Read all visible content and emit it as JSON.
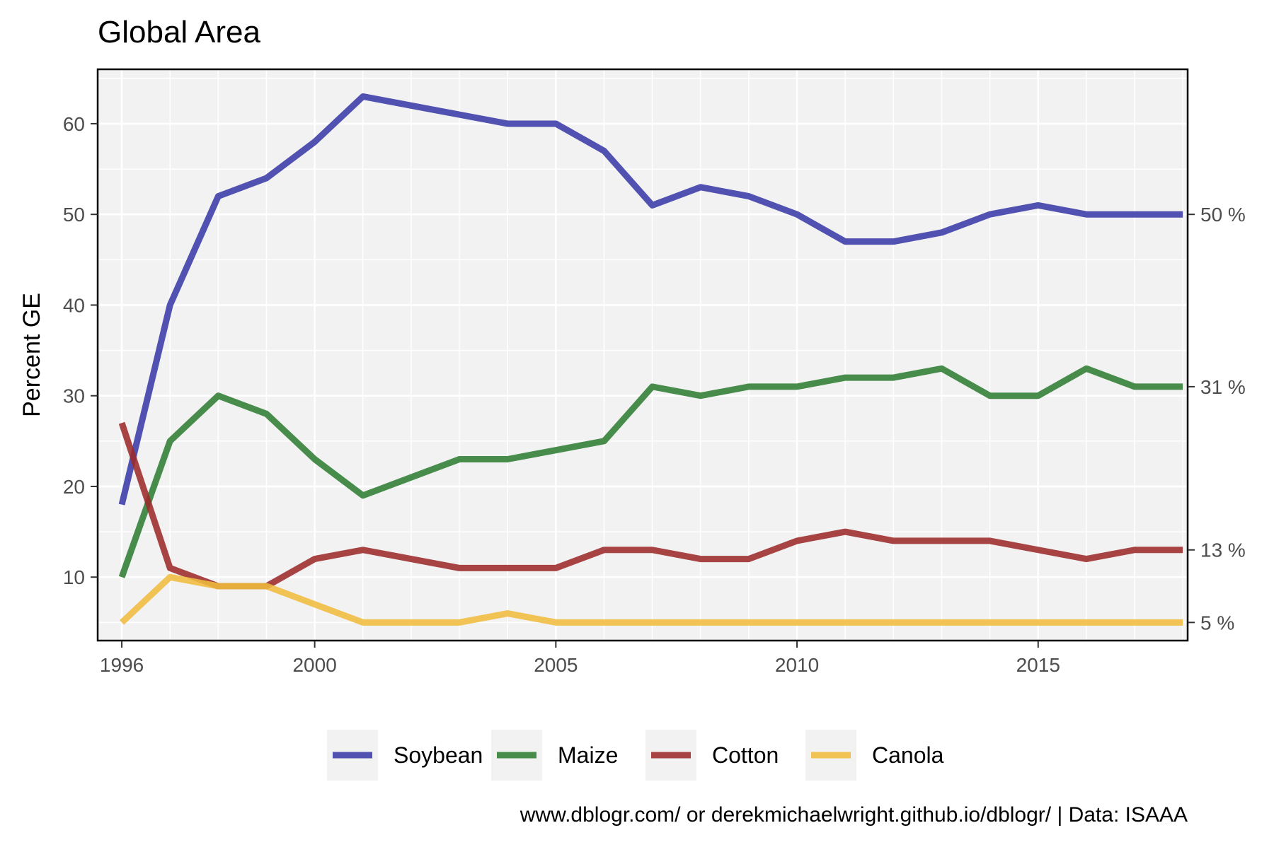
{
  "chart_data": {
    "type": "line",
    "title": "Global Area",
    "xlabel": "",
    "ylabel": "Percent GE",
    "caption": "www.dblogr.com/ or derekmichaelwright.github.io/dblogr/ | Data: ISAAA",
    "xlim": [
      1995.5,
      2018.1
    ],
    "ylim": [
      3,
      66
    ],
    "x_ticks": [
      1996,
      2000,
      2005,
      2010,
      2015
    ],
    "y_ticks": [
      10,
      20,
      30,
      40,
      50,
      60
    ],
    "grid": true,
    "legend_position": "bottom",
    "x": [
      1996,
      1997,
      1998,
      1999,
      2000,
      2001,
      2002,
      2003,
      2004,
      2005,
      2006,
      2007,
      2008,
      2009,
      2010,
      2011,
      2012,
      2013,
      2014,
      2015,
      2016,
      2017,
      2018
    ],
    "series": [
      {
        "name": "Soybean",
        "color": "#3A3AA8",
        "values": [
          18,
          40,
          52,
          54,
          58,
          63,
          62,
          61,
          60,
          60,
          57,
          51,
          53,
          52,
          50,
          47,
          47,
          48,
          50,
          51,
          50,
          50,
          50
        ],
        "end_label": "50 %"
      },
      {
        "name": "Maize",
        "color": "#2F7D32",
        "values": [
          10,
          25,
          30,
          28,
          23,
          19,
          21,
          23,
          23,
          24,
          25,
          31,
          30,
          31,
          31,
          32,
          32,
          33,
          30,
          30,
          33,
          31,
          31
        ],
        "end_label": "31 %"
      },
      {
        "name": "Cotton",
        "color": "#9C2A2A",
        "values": [
          27,
          11,
          9,
          9,
          12,
          13,
          12,
          11,
          11,
          11,
          13,
          13,
          12,
          12,
          14,
          15,
          14,
          14,
          14,
          13,
          12,
          13,
          13
        ],
        "end_label": "13 %"
      },
      {
        "name": "Canola",
        "color": "#F0BB3E",
        "values": [
          5,
          10,
          9,
          9,
          7,
          5,
          5,
          5,
          6,
          5,
          5,
          5,
          5,
          5,
          5,
          5,
          5,
          5,
          5,
          5,
          5,
          5,
          5
        ],
        "end_label": "5 %"
      }
    ]
  }
}
